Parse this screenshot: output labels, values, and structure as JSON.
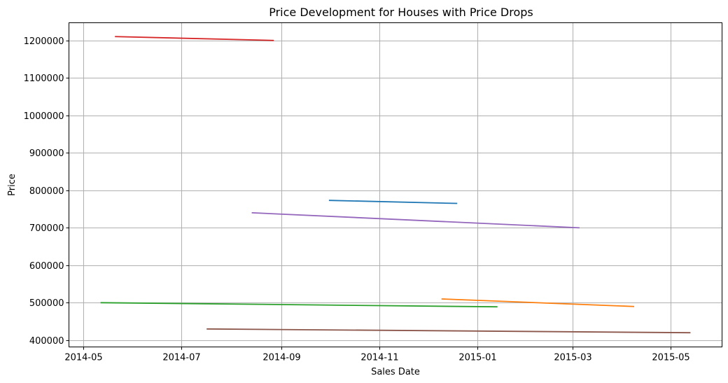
{
  "chart_data": {
    "type": "line",
    "title": "Price Development for Houses with Price Drops",
    "xlabel": "Sales Date",
    "ylabel": "Price",
    "grid": true,
    "legend": "none",
    "xlim": [
      "2014-04-22",
      "2015-06-02"
    ],
    "ylim": [
      382000,
      1247000
    ],
    "x_ticks": [
      "2014-05-01",
      "2014-07-01",
      "2014-09-01",
      "2014-11-01",
      "2015-01-01",
      "2015-03-01",
      "2015-05-01"
    ],
    "x_tick_labels": [
      "2014-05",
      "2014-07",
      "2014-09",
      "2014-11",
      "2015-01",
      "2015-03",
      "2015-05"
    ],
    "y_ticks": [
      400000,
      500000,
      600000,
      700000,
      800000,
      900000,
      1000000,
      1100000,
      1200000
    ],
    "y_tick_labels": [
      "400000",
      "500000",
      "600000",
      "700000",
      "800000",
      "900000",
      "1000000",
      "1100000",
      "1200000"
    ],
    "series": [
      {
        "color": "#1f77b4",
        "x": [
          "2014-10-01",
          "2014-12-19"
        ],
        "y": [
          773000,
          765000
        ]
      },
      {
        "color": "#ff7f0e",
        "x": [
          "2014-12-10",
          "2015-04-08"
        ],
        "y": [
          510000,
          490000
        ]
      },
      {
        "color": "#2ca02c",
        "x": [
          "2014-05-12",
          "2015-01-13"
        ],
        "y": [
          500000,
          489000
        ]
      },
      {
        "color": "#d62728",
        "x": [
          "2014-05-21",
          "2014-08-27"
        ],
        "y": [
          1210000,
          1200000
        ]
      },
      {
        "color": "#9467bd",
        "x": [
          "2014-08-14",
          "2015-03-05"
        ],
        "y": [
          740000,
          700000
        ]
      },
      {
        "color": "#8c564b",
        "x": [
          "2014-07-17",
          "2015-05-13"
        ],
        "y": [
          430000,
          420000
        ]
      }
    ]
  }
}
